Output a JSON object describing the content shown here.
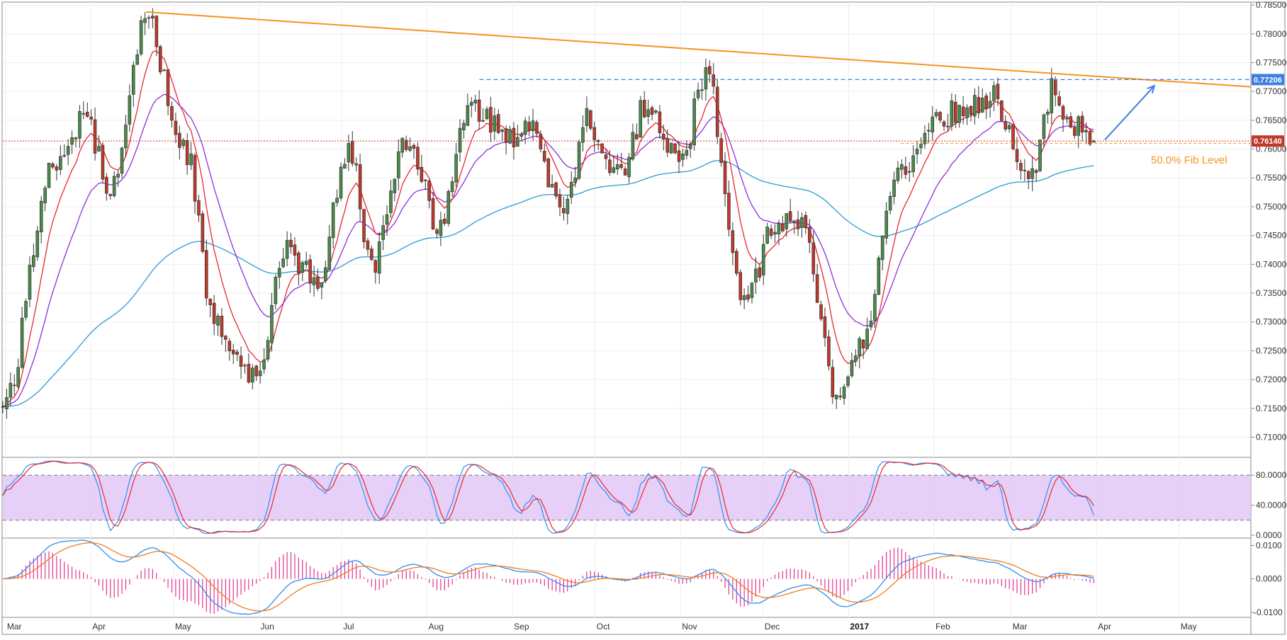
{
  "chart_data": {
    "type": "candlestick",
    "symbol_note": "",
    "x_labels": [
      "Mar",
      "Apr",
      "May",
      "Jun",
      "Jul",
      "Aug",
      "Sep",
      "Oct",
      "Nov",
      "Dec",
      "2017",
      "Feb",
      "Mar",
      "Apr",
      "May"
    ],
    "price_panel": {
      "ylim": [
        0.7065,
        0.7855
      ],
      "y_ticks": [
        "0.78500",
        "0.78000",
        "0.77500",
        "0.77000",
        "0.76500",
        "0.76000",
        "0.75500",
        "0.75000",
        "0.74500",
        "0.74000",
        "0.73500",
        "0.73000",
        "0.72500",
        "0.72000",
        "0.71500",
        "0.71000"
      ],
      "resistance_level": {
        "label": "0.77206",
        "value": 0.77206,
        "color": "#3f7fe0"
      },
      "current_price": {
        "label": "0.76140",
        "value": 0.7614,
        "color": "#c0392b"
      },
      "fib_level": {
        "label": "50.0% Fib Level",
        "value": 0.761,
        "color": "#f7931e"
      },
      "trendline": {
        "start": {
          "date": "2016-04-21",
          "value": 0.7838
        },
        "end": {
          "date": "2017-05-27",
          "value": 0.7708
        },
        "color": "#f7931e"
      },
      "projection_arrow": {
        "start": {
          "date": "2017-04-04",
          "value": 0.7616
        },
        "end": {
          "date": "2017-04-22",
          "value": 0.771
        },
        "color": "#3f7fe0"
      },
      "series_colors": {
        "up": "#4a8b4a",
        "down": "#c0392b",
        "ema_fast": "#e8272f",
        "ema_mid": "#8e2fdc",
        "ema_slow": "#2a9ad6"
      },
      "keypoints": [
        [
          "2016-02-29",
          0.715
        ],
        [
          "2016-03-18",
          0.757
        ],
        [
          "2016-03-30",
          0.765
        ],
        [
          "2016-04-08",
          0.753
        ],
        [
          "2016-04-21",
          0.782
        ],
        [
          "2016-05-05",
          0.76
        ],
        [
          "2016-05-16",
          0.73
        ],
        [
          "2016-05-31",
          0.72
        ],
        [
          "2016-06-10",
          0.742
        ],
        [
          "2016-06-22",
          0.738
        ],
        [
          "2016-07-04",
          0.76
        ],
        [
          "2016-07-12",
          0.74
        ],
        [
          "2016-07-25",
          0.762
        ],
        [
          "2016-08-05",
          0.747
        ],
        [
          "2016-08-17",
          0.767
        ],
        [
          "2016-09-01",
          0.762
        ],
        [
          "2016-09-08",
          0.763
        ],
        [
          "2016-09-19",
          0.748
        ],
        [
          "2016-09-28",
          0.765
        ],
        [
          "2016-10-10",
          0.755
        ],
        [
          "2016-10-20",
          0.768
        ],
        [
          "2016-11-01",
          0.758
        ],
        [
          "2016-11-10",
          0.773
        ],
        [
          "2016-11-24",
          0.733
        ],
        [
          "2016-12-05",
          0.746
        ],
        [
          "2016-12-15",
          0.747
        ],
        [
          "2016-12-28",
          0.718
        ],
        [
          "2017-01-05",
          0.726
        ],
        [
          "2017-01-20",
          0.756
        ],
        [
          "2017-02-03",
          0.766
        ],
        [
          "2017-02-22",
          0.769
        ],
        [
          "2017-03-08",
          0.754
        ],
        [
          "2017-03-16",
          0.77
        ],
        [
          "2017-03-24",
          0.764
        ],
        [
          "2017-03-31",
          0.7614
        ]
      ]
    },
    "stochastic_panel": {
      "ylim": [
        0,
        100
      ],
      "y_ticks": [
        "80.0000",
        "40.0000",
        "0.0000"
      ],
      "upper_band": 80,
      "lower_band": 20,
      "band_color": "#e3c8f7",
      "series_colors": {
        "k": "#2f8ff0",
        "d": "#e8272f"
      }
    },
    "macd_panel": {
      "ylim": [
        -0.0115,
        0.0122
      ],
      "y_ticks": [
        "0.0100",
        "0.0000",
        "-0.0100"
      ],
      "series_colors": {
        "macd": "#2f8ff0",
        "signal": "#f07b1e",
        "hist": "#e0338f"
      }
    }
  }
}
